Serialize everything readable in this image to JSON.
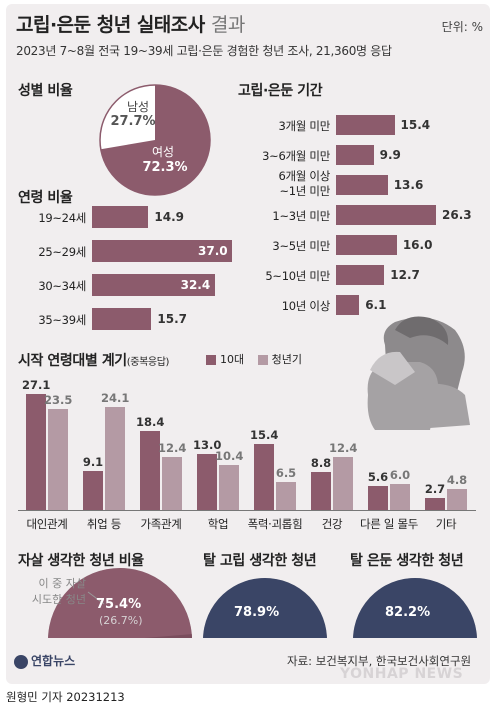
{
  "header": {
    "title_main": "고립·은둔 청년 실태조사",
    "title_suffix": "결과",
    "unit": "단위: %",
    "subtitle": "2023년 7~8월 전국 19~39세 고립·은둔 경험한 청년 조사, 21,360명 응답"
  },
  "gender": {
    "title": "성별 비율",
    "male_label": "남성",
    "male_value": "27.7%",
    "female_label": "여성",
    "female_value": "72.3%"
  },
  "age": {
    "title": "연령 비율",
    "items": [
      {
        "label": "19~24세",
        "value": 14.9
      },
      {
        "label": "25~29세",
        "value": 37.0
      },
      {
        "label": "30~34세",
        "value": 32.4
      },
      {
        "label": "35~39세",
        "value": 15.7
      }
    ]
  },
  "period": {
    "title": "고립·은둔 기간",
    "items": [
      {
        "label": "3개월 미만",
        "value": 15.4
      },
      {
        "label": "3~6개월 미만",
        "value": 9.9
      },
      {
        "label": "6개월 이상",
        "label2": "~1년 미만",
        "value": 13.6
      },
      {
        "label": "1~3년 미만",
        "value": 26.3
      },
      {
        "label": "3~5년 미만",
        "value": 16.0
      },
      {
        "label": "5~10년 미만",
        "value": 12.7
      },
      {
        "label": "10년 이상",
        "value": 6.1
      }
    ]
  },
  "causes": {
    "title": "시작 연령대별 계기",
    "note": "(중복응답)",
    "series_names": [
      "10대",
      "청년기"
    ],
    "categories": [
      "대인관계",
      "취업 등",
      "가족관계",
      "학업",
      "폭력·괴롭힘",
      "건강",
      "다른 일 몰두",
      "기타"
    ],
    "teen": [
      27.1,
      9.1,
      18.4,
      13.0,
      15.4,
      8.8,
      5.6,
      2.7
    ],
    "youth": [
      23.5,
      24.1,
      12.4,
      10.4,
      6.5,
      12.4,
      6.0,
      4.8
    ]
  },
  "suicide": {
    "title": "자살 생각한 청년 비율",
    "value_label": "75.4%",
    "sub_value_label": "(26.7%)",
    "note_line1": "이 중 자살",
    "note_line2": "시도한 청년",
    "value": 75.4,
    "sub_value": 26.7
  },
  "escape_isolation": {
    "title": "탈 고립 생각한 청년",
    "value_label": "78.9%",
    "value": 78.9
  },
  "escape_reclusion": {
    "title": "탈 은둔 생각한 청년",
    "value_label": "82.2%",
    "value": 82.2
  },
  "footer": {
    "logo": "연합뉴스",
    "source": "자료: 보건복지부, 한국보건사회연구원",
    "watermark": "YONHAP NEWS",
    "credit": "원형민 기자  20231213"
  },
  "colors": {
    "teen": "#8c5b6c",
    "youth": "#b49aa4",
    "navy": "#3a4566",
    "grey": "#c3c0c2",
    "card": "#f1eeef"
  },
  "chart_data": [
    {
      "type": "pie",
      "title": "성별 비율",
      "categories": [
        "남성",
        "여성"
      ],
      "values": [
        27.7,
        72.3
      ]
    },
    {
      "type": "bar",
      "title": "연령 비율",
      "categories": [
        "19~24세",
        "25~29세",
        "30~34세",
        "35~39세"
      ],
      "values": [
        14.9,
        37.0,
        32.4,
        15.7
      ]
    },
    {
      "type": "bar",
      "title": "고립·은둔 기간",
      "categories": [
        "3개월 미만",
        "3~6개월 미만",
        "6개월 이상~1년 미만",
        "1~3년 미만",
        "3~5년 미만",
        "5~10년 미만",
        "10년 이상"
      ],
      "values": [
        15.4,
        9.9,
        13.6,
        26.3,
        16.0,
        12.7,
        6.1
      ]
    },
    {
      "type": "bar",
      "title": "시작 연령대별 계기",
      "categories": [
        "대인관계",
        "취업 등",
        "가족관계",
        "학업",
        "폭력·괴롭힘",
        "건강",
        "다른 일 몰두",
        "기타"
      ],
      "series": [
        {
          "name": "10대",
          "values": [
            27.1,
            9.1,
            18.4,
            13.0,
            15.4,
            8.8,
            5.6,
            2.7
          ]
        },
        {
          "name": "청년기",
          "values": [
            23.5,
            24.1,
            12.4,
            10.4,
            6.5,
            12.4,
            6.0,
            4.8
          ]
        }
      ]
    },
    {
      "type": "pie",
      "title": "자살 생각한 청년 비율",
      "values": [
        75.4,
        26.7
      ]
    },
    {
      "type": "pie",
      "title": "탈 고립 생각한 청년",
      "values": [
        78.9
      ]
    },
    {
      "type": "pie",
      "title": "탈 은둔 생각한 청년",
      "values": [
        82.2
      ]
    }
  ]
}
